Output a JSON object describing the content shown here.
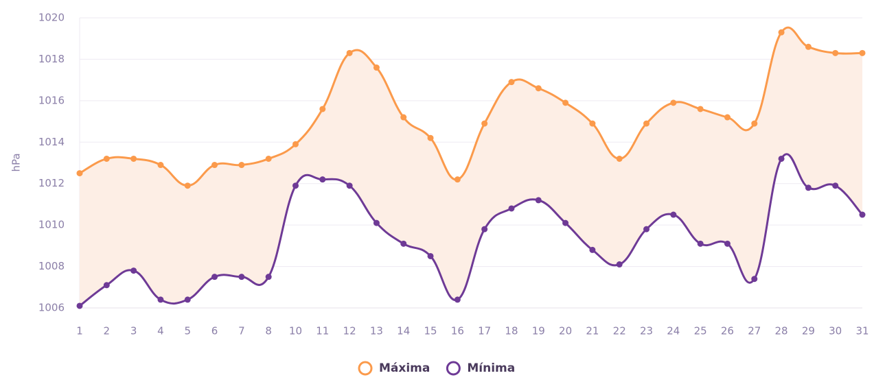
{
  "chart_data": {
    "type": "line",
    "ylabel": "hPa",
    "categories": [
      "1",
      "2",
      "3",
      "4",
      "5",
      "6",
      "7",
      "8",
      "10",
      "11",
      "12",
      "13",
      "14",
      "15",
      "16",
      "17",
      "18",
      "19",
      "20",
      "21",
      "22",
      "23",
      "24",
      "25",
      "26",
      "27",
      "28",
      "29",
      "30",
      "31"
    ],
    "series": [
      {
        "name": "Máxima",
        "color": "#fb9a4b",
        "values": [
          1012.5,
          1013.2,
          1013.2,
          1012.9,
          1011.9,
          1012.9,
          1012.9,
          1013.2,
          1013.9,
          1015.6,
          1018.3,
          1017.6,
          1015.2,
          1014.2,
          1012.2,
          1014.9,
          1016.9,
          1016.6,
          1015.9,
          1014.9,
          1013.2,
          1014.9,
          1015.9,
          1015.6,
          1015.2,
          1014.9,
          1019.3,
          1018.6,
          1018.3,
          1018.3
        ]
      },
      {
        "name": "Mínima",
        "color": "#6e3a96",
        "values": [
          1006.1,
          1007.1,
          1007.8,
          1006.4,
          1006.4,
          1007.5,
          1007.5,
          1007.5,
          1011.9,
          1012.2,
          1011.9,
          1010.1,
          1009.1,
          1008.5,
          1006.4,
          1009.8,
          1010.8,
          1011.2,
          1010.1,
          1008.8,
          1008.1,
          1009.8,
          1010.5,
          1009.1,
          1009.1,
          1007.4,
          1013.2,
          1011.8,
          1011.9,
          1010.5
        ]
      }
    ],
    "fill_color": "#fdeee5",
    "ylim": [
      1006,
      1020
    ],
    "yticks": [
      1006,
      1008,
      1010,
      1012,
      1014,
      1016,
      1018,
      1020
    ],
    "grid": true
  }
}
